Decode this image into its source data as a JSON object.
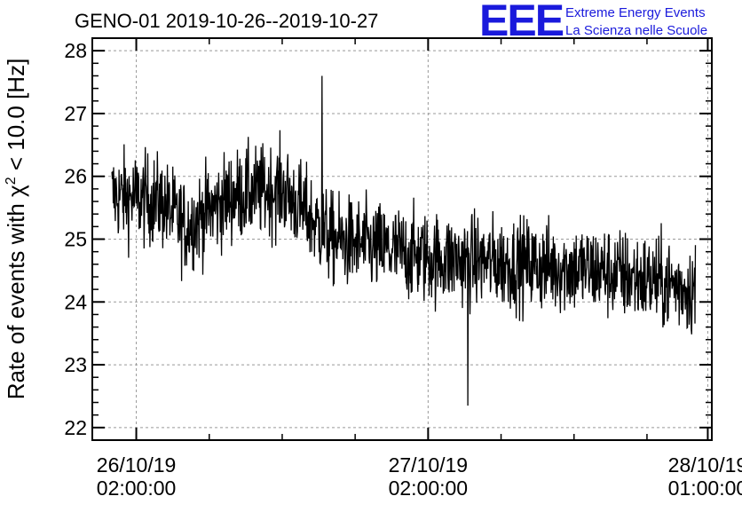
{
  "title": "GENO-01 2019-10-26--2019-10-27",
  "logo": {
    "text": "EEE",
    "line1": "Extreme Energy Events",
    "line2": "La Scienza nelle Scuole",
    "color": "#1a1adc"
  },
  "chart_data": {
    "type": "line",
    "title": "GENO-01 2019-10-26--2019-10-27",
    "xlabel": "",
    "ylabel_prefix": "Rate of events with ",
    "ylabel_chi": "χ",
    "ylabel_sup": "2",
    "ylabel_suffix": " < 10.0 [Hz]",
    "ylim": [
      21.8,
      28.2
    ],
    "yticks": [
      22,
      23,
      24,
      25,
      26,
      27,
      28
    ],
    "xlim": [
      "2019-10-25T22:23:00",
      "2019-10-28T01:20:00"
    ],
    "xticks": [
      {
        "date": "26/10/19",
        "time": "02:00:00",
        "t": "2019-10-26T02:00:00"
      },
      {
        "date": "27/10/19",
        "time": "02:00:00",
        "t": "2019-10-27T02:00:00"
      },
      {
        "date": "28/10/19",
        "time": "01:00:00",
        "t": "2019-10-28T01:00:00"
      }
    ],
    "grid": true,
    "series": [
      {
        "color": "#000000",
        "x_start": "2019-10-26T00:00:00",
        "x_end": "2019-10-27T23:59:00",
        "trend": [
          {
            "t": "2019-10-26T00:00:00",
            "v": 25.7
          },
          {
            "t": "2019-10-26T04:00:00",
            "v": 25.6
          },
          {
            "t": "2019-10-26T06:00:00",
            "v": 25.2
          },
          {
            "t": "2019-10-26T10:00:00",
            "v": 25.7
          },
          {
            "t": "2019-10-26T14:00:00",
            "v": 25.8
          },
          {
            "t": "2019-10-26T18:00:00",
            "v": 25.0
          },
          {
            "t": "2019-10-27T02:00:00",
            "v": 24.7
          },
          {
            "t": "2019-10-27T10:00:00",
            "v": 24.6
          },
          {
            "t": "2019-10-27T16:00:00",
            "v": 24.5
          },
          {
            "t": "2019-10-27T23:59:00",
            "v": 24.2
          }
        ],
        "noise_half_range": 0.75,
        "max": 27.6,
        "min": 22.35
      }
    ]
  }
}
